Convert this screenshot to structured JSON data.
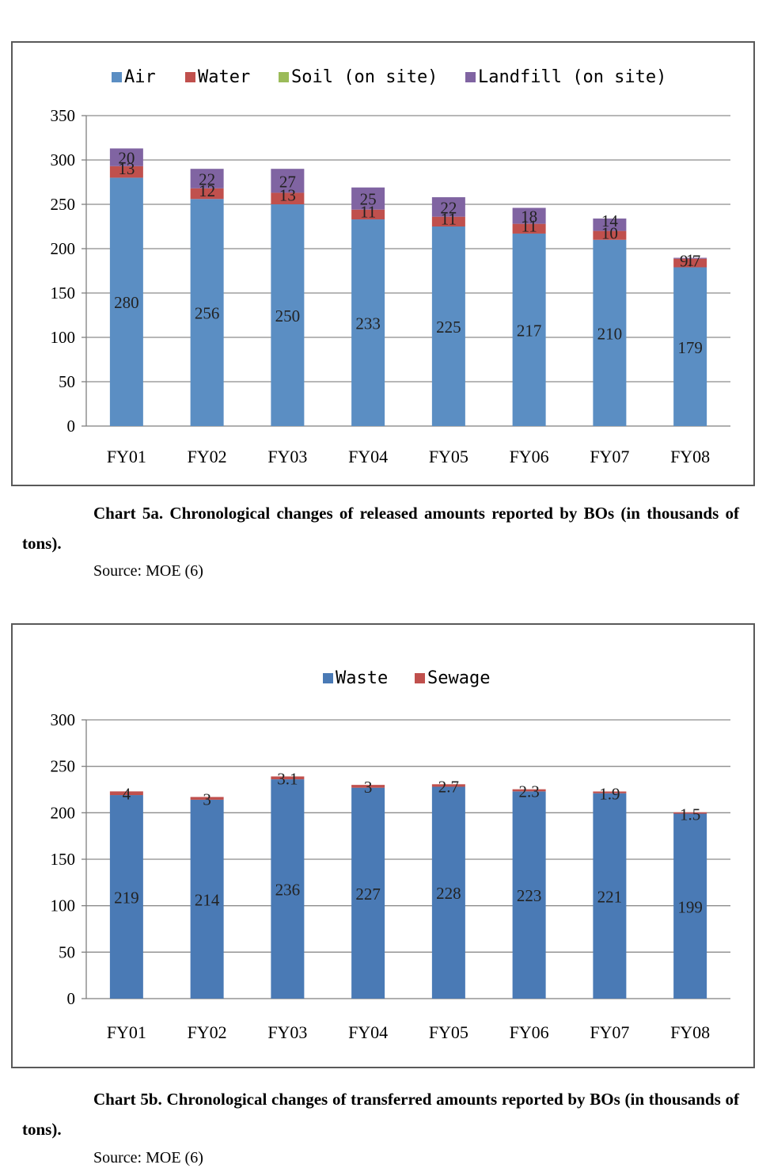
{
  "charts": {
    "a": {
      "caption": "Chart 5a. Chronological changes of released amounts reported by BOs (in thousands of tons).",
      "source": "Source: MOE (6)"
    },
    "b": {
      "caption": "Chart 5b. Chronological changes of transferred amounts reported by BOs (in thousands of tons).",
      "source": "Source: MOE (6)"
    }
  },
  "chart_data": [
    {
      "type": "bar",
      "stacked": true,
      "categories": [
        "FY01",
        "FY02",
        "FY03",
        "FY04",
        "FY05",
        "FY06",
        "FY07",
        "FY08"
      ],
      "series": [
        {
          "name": "Air",
          "color": "#5B8EC3",
          "values": [
            280,
            256,
            250,
            233,
            225,
            217,
            210,
            179
          ],
          "labels": [
            "280",
            "256",
            "250",
            "233",
            "225",
            "217",
            "210",
            "179"
          ]
        },
        {
          "name": "Water",
          "color": "#C0504D",
          "values": [
            13,
            12,
            13,
            11,
            11,
            11,
            10,
            9.7
          ],
          "labels": [
            "13",
            "12",
            "13",
            "11",
            "11",
            "11",
            "10",
            "9.7"
          ]
        },
        {
          "name": "Soil (on site)",
          "color": "#9BBB59",
          "values": [
            0,
            0,
            0,
            0,
            0,
            0,
            0,
            0
          ],
          "labels": [
            "",
            "",
            "",
            "",
            "",
            "",
            "",
            ""
          ]
        },
        {
          "name": "Landfill (on site)",
          "color": "#8064A2",
          "values": [
            20,
            22,
            27,
            25,
            22,
            18,
            14,
            1
          ],
          "labels": [
            "20",
            "22",
            "27",
            "25",
            "22",
            "18",
            "14",
            "1"
          ]
        }
      ],
      "ylim": [
        0,
        350
      ],
      "yticks": [
        "0",
        "50",
        "100",
        "150",
        "200",
        "250",
        "300",
        "350"
      ],
      "grid": true,
      "legend": "top"
    },
    {
      "type": "bar",
      "stacked": true,
      "categories": [
        "FY01",
        "FY02",
        "FY03",
        "FY04",
        "FY05",
        "FY06",
        "FY07",
        "FY08"
      ],
      "series": [
        {
          "name": "Waste",
          "color": "#4A7AB5",
          "values": [
            219,
            214,
            236,
            227,
            228,
            223,
            221,
            199
          ],
          "labels": [
            "219",
            "214",
            "236",
            "227",
            "228",
            "223",
            "221",
            "199"
          ]
        },
        {
          "name": "Sewage",
          "color": "#C0504D",
          "values": [
            4,
            3,
            3.1,
            3,
            2.7,
            2.3,
            1.9,
            1.5
          ],
          "labels": [
            "4",
            "3",
            "3.1",
            "3",
            "2.7",
            "2.3",
            "1.9",
            "1.5"
          ]
        }
      ],
      "ylim": [
        0,
        300
      ],
      "yticks": [
        "0",
        "50",
        "100",
        "150",
        "200",
        "250",
        "300"
      ],
      "grid": true,
      "legend": "top"
    }
  ]
}
